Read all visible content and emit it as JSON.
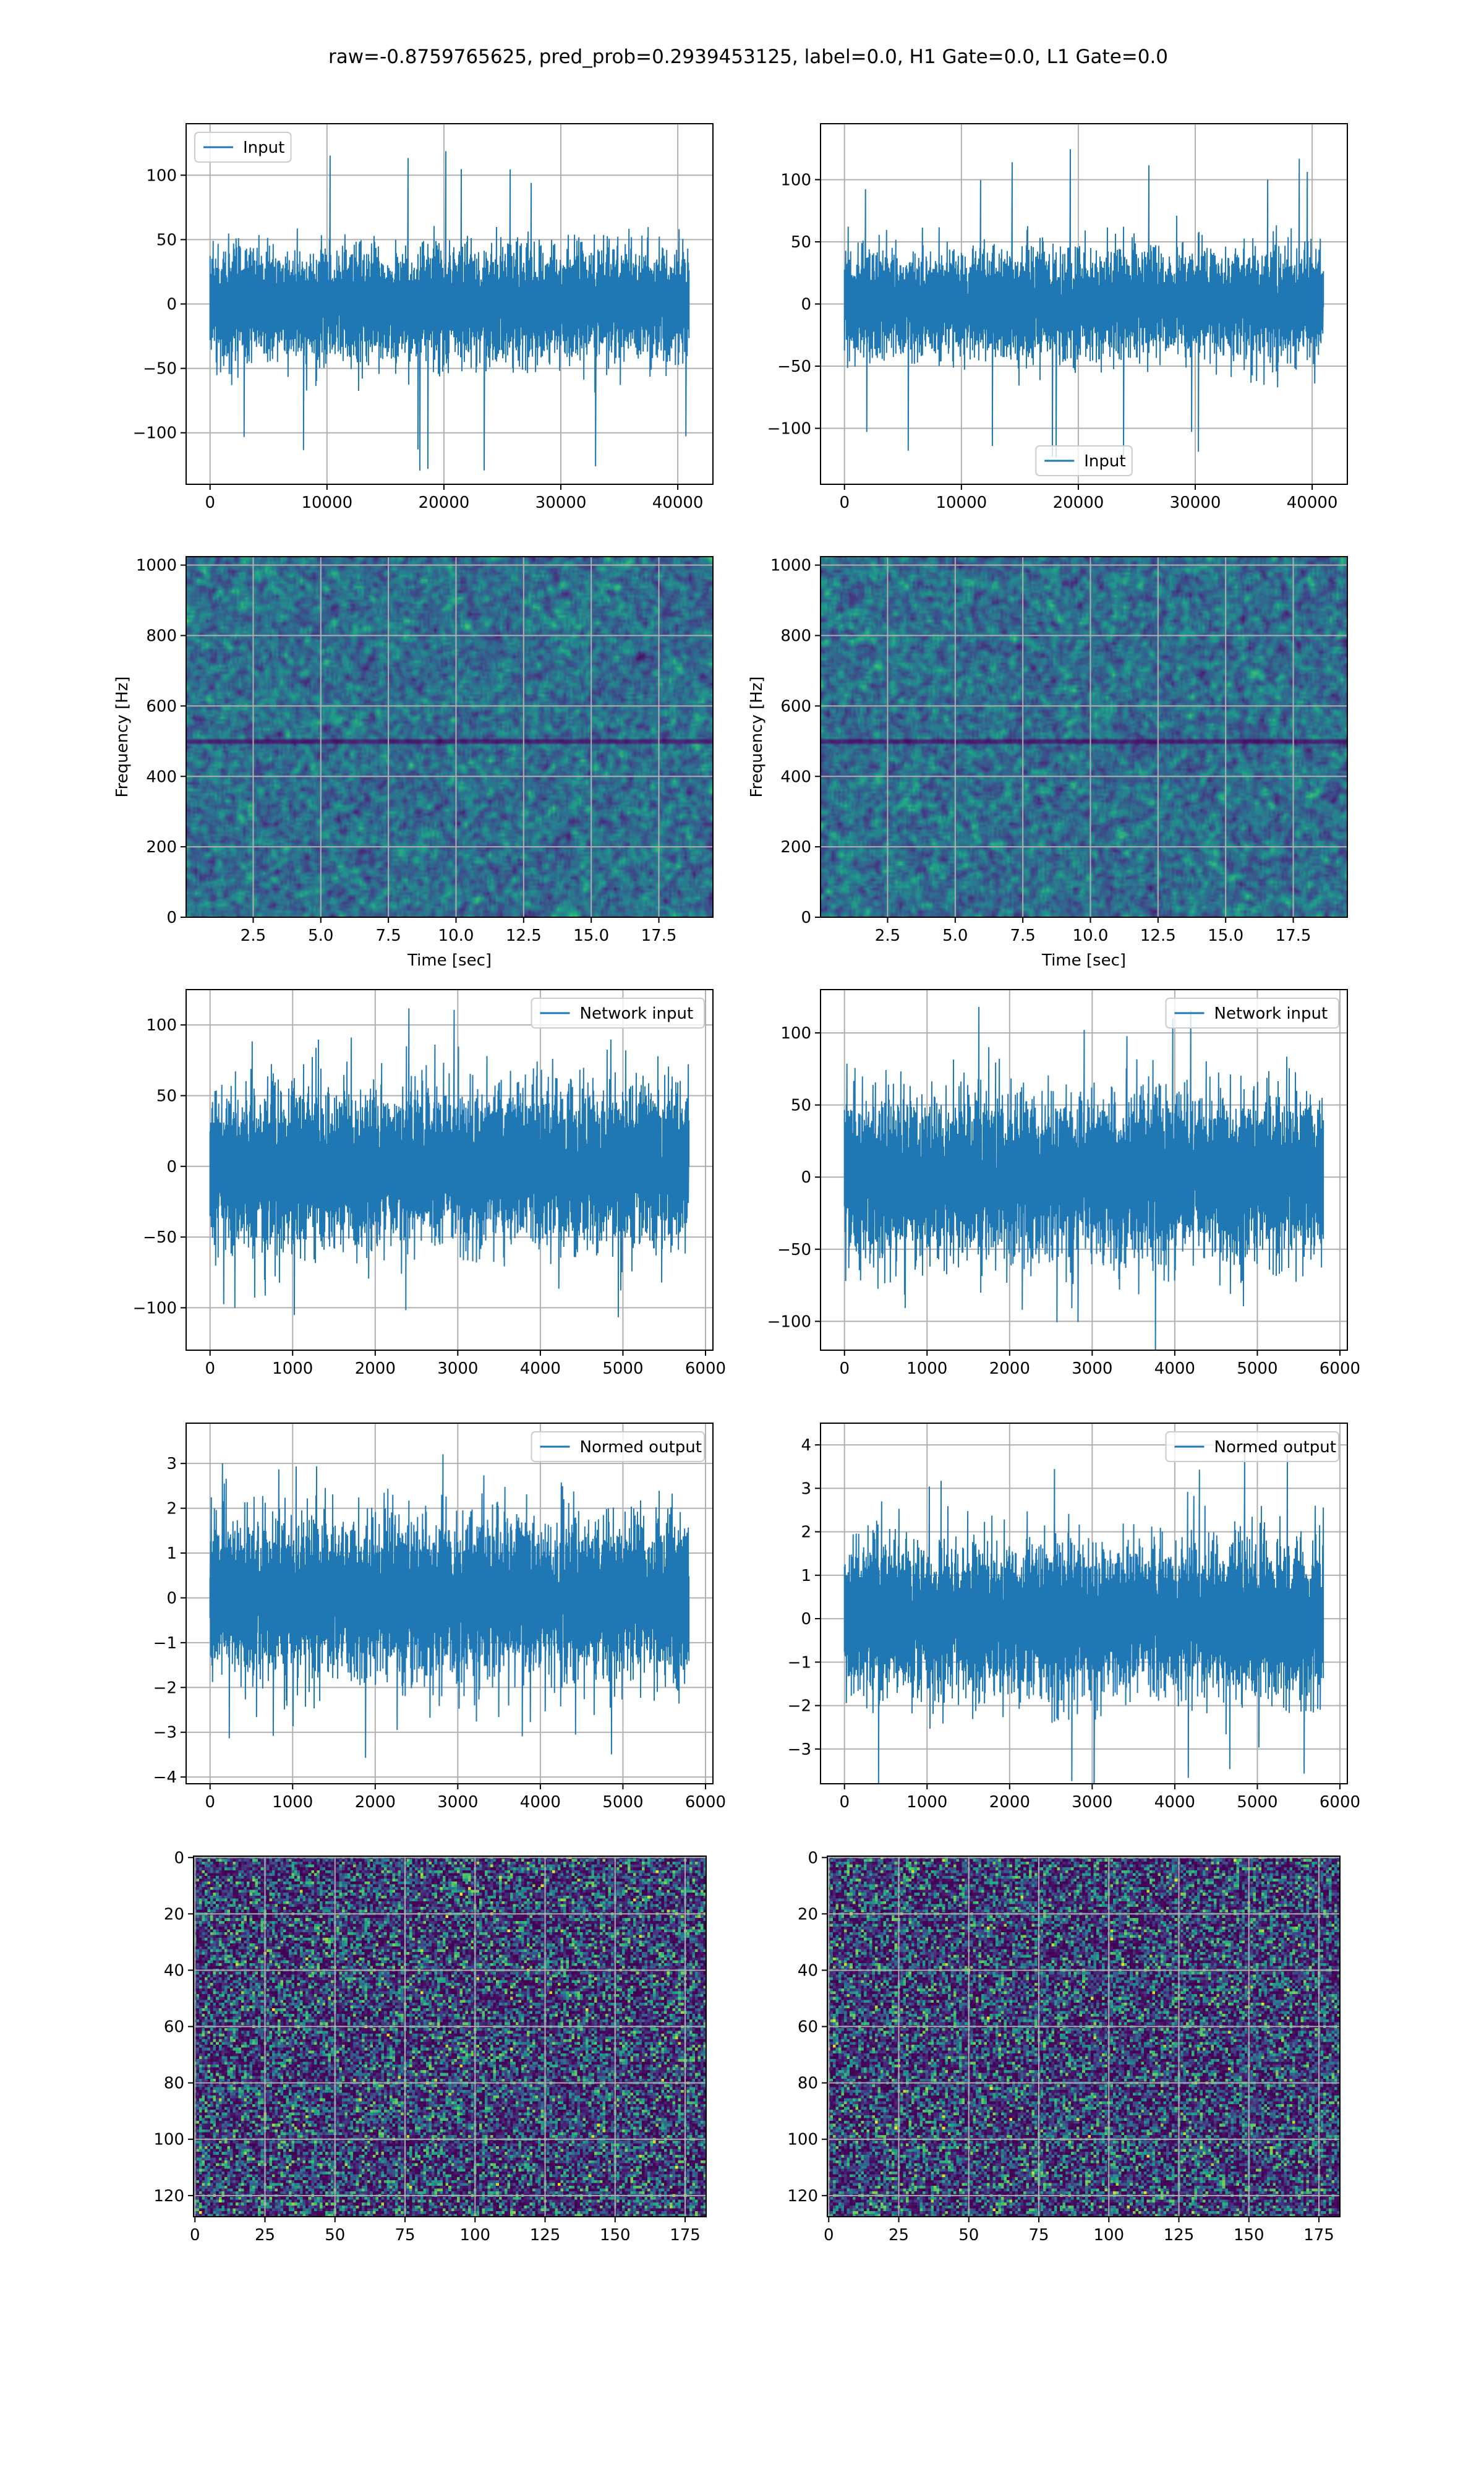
{
  "title": "raw=-0.8759765625, pred_prob=0.2939453125, label=0.0, H1 Gate=0.0, L1 Gate=0.0",
  "colors": {
    "series": "#1f77b4",
    "grid": "#b0b0b0",
    "viridis": [
      "#440154",
      "#482878",
      "#3e4a89",
      "#31688e",
      "#26828e",
      "#1f9e89",
      "#35b779",
      "#6ece58",
      "#b5de2b",
      "#fde725"
    ]
  },
  "chart_data": [
    {
      "id": "p1",
      "type": "line",
      "legend": {
        "label": "Input",
        "loc": "upper-left"
      },
      "xlim": [
        -2048,
        43008
      ],
      "ylim": [
        -140,
        140
      ],
      "xticks": [
        0,
        10000,
        20000,
        30000,
        40000
      ],
      "yticks": [
        -100,
        -50,
        0,
        50,
        100
      ],
      "xticklabels": [
        "0",
        "10000",
        "20000",
        "30000",
        "40000"
      ],
      "yticklabels": [
        "−100",
        "−50",
        "0",
        "50",
        "100"
      ],
      "n": 40960,
      "sigma": 20,
      "peak": 130,
      "grid": true,
      "xlabel": "",
      "ylabel": ""
    },
    {
      "id": "p2",
      "type": "line",
      "legend": {
        "label": "Input",
        "loc": "lower-center"
      },
      "xlim": [
        -2048,
        43008
      ],
      "ylim": [
        -145,
        145
      ],
      "xticks": [
        0,
        10000,
        20000,
        30000,
        40000
      ],
      "yticks": [
        -100,
        -50,
        0,
        50,
        100
      ],
      "xticklabels": [
        "0",
        "10000",
        "20000",
        "30000",
        "40000"
      ],
      "yticklabels": [
        "−100",
        "−50",
        "0",
        "50",
        "100"
      ],
      "n": 40960,
      "sigma": 20,
      "peak": 130,
      "grid": true,
      "xlabel": "",
      "ylabel": ""
    },
    {
      "id": "p3",
      "type": "heatmap",
      "xlim": [
        0.02,
        19.5
      ],
      "ylim": [
        0,
        1024
      ],
      "xticks": [
        2.5,
        5.0,
        7.5,
        10.0,
        12.5,
        15.0,
        17.5
      ],
      "yticks": [
        0,
        200,
        400,
        600,
        800,
        1000
      ],
      "xticklabels": [
        "2.5",
        "5.0",
        "7.5",
        "10.0",
        "12.5",
        "15.0",
        "17.5"
      ],
      "yticklabels": [
        "0",
        "200",
        "400",
        "600",
        "800",
        "1000"
      ],
      "xlabel": "Time [sec]",
      "ylabel": "Frequency [Hz]",
      "grid": true,
      "line_hz": 500
    },
    {
      "id": "p4",
      "type": "heatmap",
      "xlim": [
        0.02,
        19.5
      ],
      "ylim": [
        0,
        1024
      ],
      "xticks": [
        2.5,
        5.0,
        7.5,
        10.0,
        12.5,
        15.0,
        17.5
      ],
      "yticks": [
        0,
        200,
        400,
        600,
        800,
        1000
      ],
      "xticklabels": [
        "2.5",
        "5.0",
        "7.5",
        "10.0",
        "12.5",
        "15.0",
        "17.5"
      ],
      "yticklabels": [
        "0",
        "200",
        "400",
        "600",
        "800",
        "1000"
      ],
      "xlabel": "Time [sec]",
      "ylabel": "Frequency [Hz]",
      "grid": true,
      "line_hz": 500
    },
    {
      "id": "p5",
      "type": "line",
      "legend": {
        "label": "Network input",
        "loc": "upper-right"
      },
      "xlim": [
        -290,
        6090
      ],
      "ylim": [
        -130,
        125
      ],
      "xticks": [
        0,
        1000,
        2000,
        3000,
        4000,
        5000,
        6000
      ],
      "yticks": [
        -100,
        -50,
        0,
        50,
        100
      ],
      "xticklabels": [
        "0",
        "1000",
        "2000",
        "3000",
        "4000",
        "5000",
        "6000"
      ],
      "yticklabels": [
        "−100",
        "−50",
        "0",
        "50",
        "100"
      ],
      "n": 5800,
      "sigma": 26,
      "peak": 112,
      "grid": true,
      "xlabel": "",
      "ylabel": ""
    },
    {
      "id": "p6",
      "type": "line",
      "legend": {
        "label": "Network input",
        "loc": "upper-right"
      },
      "xlim": [
        -290,
        6090
      ],
      "ylim": [
        -120,
        130
      ],
      "xticks": [
        0,
        1000,
        2000,
        3000,
        4000,
        5000,
        6000
      ],
      "yticks": [
        -100,
        -50,
        0,
        50,
        100
      ],
      "xticklabels": [
        "0",
        "1000",
        "2000",
        "3000",
        "4000",
        "5000",
        "6000"
      ],
      "yticklabels": [
        "−100",
        "−50",
        "0",
        "50",
        "100"
      ],
      "n": 5800,
      "sigma": 26,
      "peak": 125,
      "grid": true,
      "xlabel": "",
      "ylabel": ""
    },
    {
      "id": "p7",
      "type": "line",
      "legend": {
        "label": "Normed output",
        "loc": "upper-right"
      },
      "xlim": [
        -290,
        6090
      ],
      "ylim": [
        -4.15,
        3.9
      ],
      "xticks": [
        0,
        1000,
        2000,
        3000,
        4000,
        5000,
        6000
      ],
      "yticks": [
        -4,
        -3,
        -2,
        -1,
        0,
        1,
        2,
        3
      ],
      "xticklabels": [
        "0",
        "1000",
        "2000",
        "3000",
        "4000",
        "5000",
        "6000"
      ],
      "yticklabels": [
        "−4",
        "−3",
        "−2",
        "−1",
        "0",
        "1",
        "2",
        "3"
      ],
      "n": 5800,
      "sigma": 0.8,
      "peak": 3.6,
      "grid": true,
      "xlabel": "",
      "ylabel": ""
    },
    {
      "id": "p8",
      "type": "line",
      "legend": {
        "label": "Normed output",
        "loc": "upper-right"
      },
      "xlim": [
        -290,
        6090
      ],
      "ylim": [
        -3.8,
        4.5
      ],
      "xticks": [
        0,
        1000,
        2000,
        3000,
        4000,
        5000,
        6000
      ],
      "yticks": [
        -3,
        -2,
        -1,
        0,
        1,
        2,
        3,
        4
      ],
      "xticklabels": [
        "0",
        "1000",
        "2000",
        "3000",
        "4000",
        "5000",
        "6000"
      ],
      "yticklabels": [
        "−3",
        "−2",
        "−1",
        "0",
        "1",
        "2",
        "3",
        "4"
      ],
      "n": 5800,
      "sigma": 0.8,
      "peak": 4.1,
      "grid": true,
      "xlabel": "",
      "ylabel": ""
    },
    {
      "id": "p9",
      "type": "heatmap",
      "xlim": [
        -0.5,
        182.5
      ],
      "ylim": [
        -0.5,
        127.5
      ],
      "xticks": [
        0,
        25,
        50,
        75,
        100,
        125,
        150,
        175
      ],
      "yticks": [
        0,
        20,
        40,
        60,
        80,
        100,
        120
      ],
      "xticklabels": [
        "0",
        "25",
        "50",
        "75",
        "100",
        "125",
        "150",
        "175"
      ],
      "yticklabels": [
        "0",
        "20",
        "40",
        "60",
        "80",
        "100",
        "120"
      ],
      "cols": 183,
      "rows": 128,
      "grid": true,
      "xlabel": "",
      "ylabel": ""
    },
    {
      "id": "p10",
      "type": "heatmap",
      "xlim": [
        -0.5,
        182.5
      ],
      "ylim": [
        -0.5,
        127.5
      ],
      "xticks": [
        0,
        25,
        50,
        75,
        100,
        125,
        150,
        175
      ],
      "yticks": [
        0,
        20,
        40,
        60,
        80,
        100,
        120
      ],
      "xticklabels": [
        "0",
        "25",
        "50",
        "75",
        "100",
        "125",
        "150",
        "175"
      ],
      "yticklabels": [
        "0",
        "20",
        "40",
        "60",
        "80",
        "100",
        "120"
      ],
      "cols": 183,
      "rows": 128,
      "grid": true,
      "xlabel": "",
      "ylabel": ""
    }
  ]
}
